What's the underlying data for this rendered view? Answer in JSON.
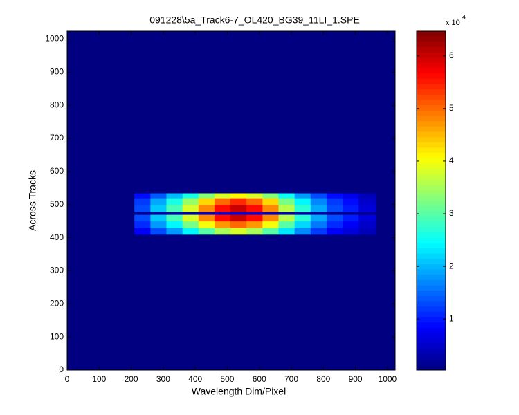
{
  "chart_data": {
    "type": "heatmap",
    "title": "091228\\5a_Track6-7_OL420_BG39_11LI_1.SPE",
    "x_label": "Wavelength Dim/Pixel",
    "y_label": "Across Tracks",
    "xlim": [
      0,
      1024
    ],
    "ylim": [
      0,
      1024
    ],
    "xticks": [
      0,
      100,
      200,
      300,
      400,
      500,
      600,
      700,
      800,
      900,
      1000
    ],
    "yticks": [
      0,
      100,
      200,
      300,
      400,
      500,
      600,
      700,
      800,
      900,
      1000
    ],
    "x_edges": [
      0,
      210,
      260,
      310,
      360,
      410,
      460,
      510,
      560,
      610,
      660,
      710,
      760,
      810,
      860,
      910,
      965,
      1024
    ],
    "y_edges": [
      0,
      410,
      430,
      450,
      470,
      478,
      500,
      520,
      535,
      1024
    ],
    "values": [
      [
        0,
        0,
        0,
        0,
        0,
        0,
        0,
        0,
        0,
        0,
        0,
        0,
        0,
        0,
        0,
        0,
        0
      ],
      [
        0,
        0.8,
        1.3,
        1.8,
        2.4,
        3.0,
        3.5,
        3.8,
        3.5,
        3.0,
        2.3,
        1.7,
        1.2,
        0.8,
        0.6,
        0.4,
        0
      ],
      [
        0,
        1.1,
        1.8,
        2.4,
        3.2,
        4.0,
        4.7,
        5.0,
        4.7,
        4.0,
        3.0,
        2.2,
        1.6,
        1.1,
        0.8,
        0.5,
        0
      ],
      [
        0,
        1.3,
        2.1,
        2.9,
        3.8,
        4.8,
        5.6,
        6.0,
        5.6,
        4.8,
        3.6,
        2.7,
        1.9,
        1.3,
        1.0,
        0.6,
        0
      ],
      [
        0,
        0.1,
        0.2,
        0.3,
        0.4,
        0.5,
        0.6,
        0.6,
        0.6,
        0.5,
        0.4,
        0.3,
        0.2,
        0.1,
        0.1,
        0.1,
        0
      ],
      [
        0,
        1.3,
        2.1,
        2.9,
        3.8,
        4.8,
        5.6,
        6.0,
        5.6,
        4.8,
        3.6,
        2.7,
        1.9,
        1.3,
        1.0,
        0.6,
        0
      ],
      [
        0,
        1.2,
        1.9,
        2.6,
        3.4,
        4.3,
        5.0,
        5.4,
        5.0,
        4.3,
        3.2,
        2.4,
        1.7,
        1.2,
        0.9,
        0.5,
        0
      ],
      [
        0,
        0.9,
        1.4,
        2.0,
        2.6,
        3.3,
        3.8,
        4.1,
        3.8,
        3.3,
        2.5,
        1.8,
        1.3,
        0.9,
        0.7,
        0.4,
        0
      ],
      [
        0,
        0,
        0,
        0,
        0,
        0,
        0,
        0,
        0,
        0,
        0,
        0,
        0,
        0,
        0,
        0,
        0
      ]
    ],
    "colormap": "jet",
    "clim": [
      0.03,
      6.47
    ],
    "colorbar_ticks": [
      1,
      2,
      3,
      4,
      5,
      6
    ],
    "colorbar_multiplier": "x 10",
    "colorbar_exponent": "4"
  }
}
